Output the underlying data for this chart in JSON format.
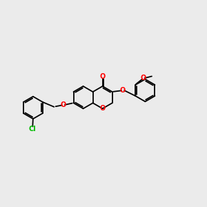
{
  "background_color": "#ebebeb",
  "bond_color": "#000000",
  "oxygen_color": "#ff0000",
  "chlorine_color": "#00bb00",
  "figsize": [
    3.0,
    3.0
  ],
  "dpi": 100,
  "lw": 1.3,
  "fs": 7.0,
  "r": 0.55,
  "xlim": [
    -4.5,
    5.5
  ],
  "ylim": [
    -3.0,
    3.0
  ]
}
